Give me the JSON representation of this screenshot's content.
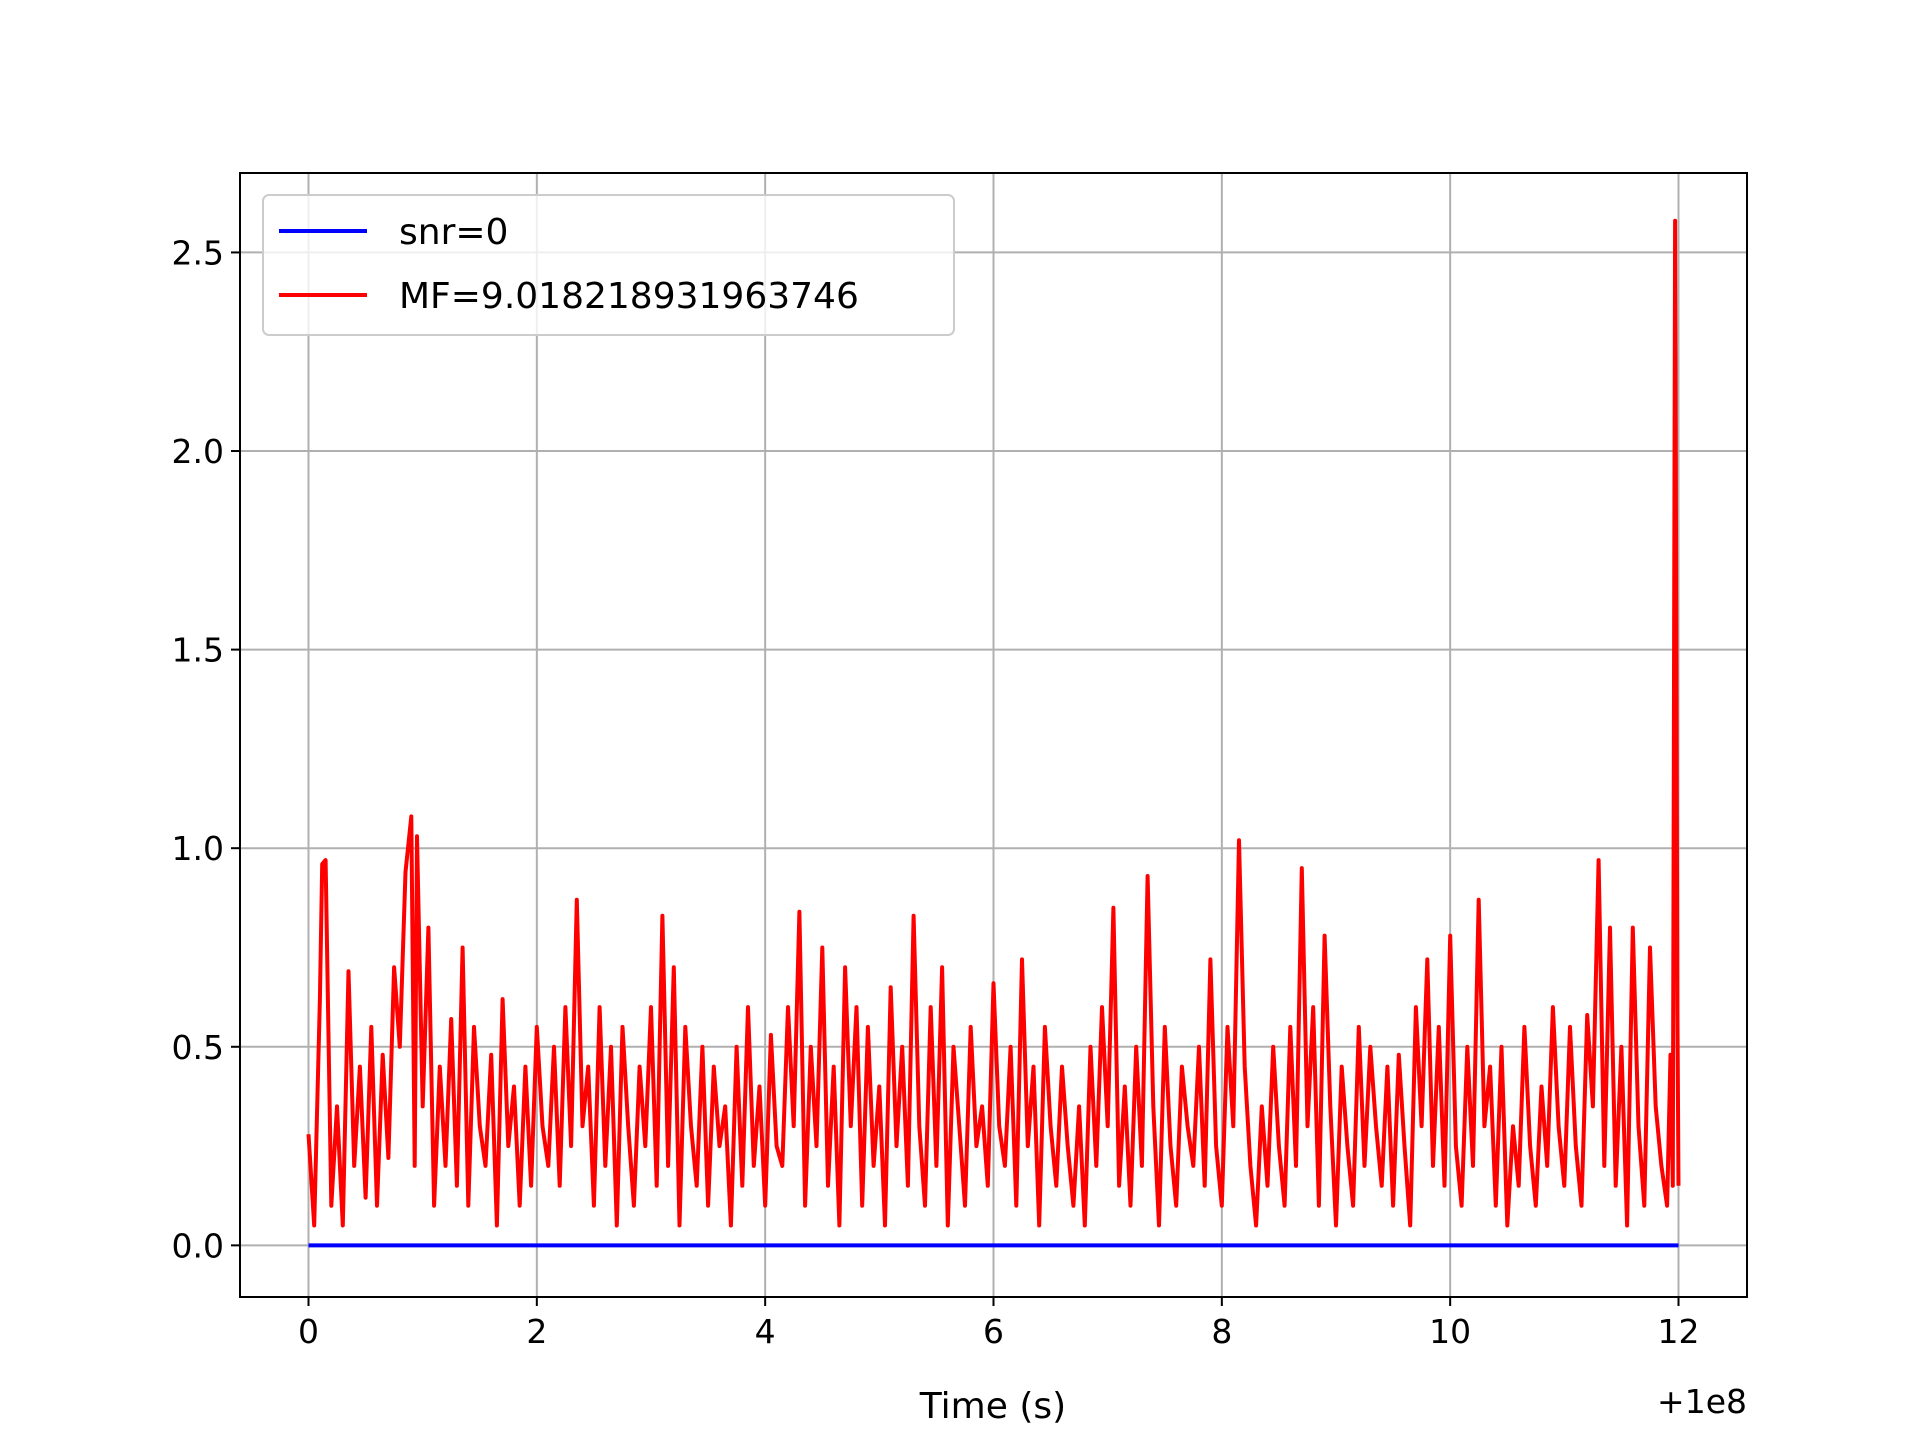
{
  "chart_data": {
    "type": "line",
    "title": "",
    "xlabel": "Time (s)",
    "ylabel": "",
    "x_offset_label": "+1e8",
    "xlim": [
      -0.6,
      12.6
    ],
    "ylim": [
      -0.13,
      2.7
    ],
    "x_ticks": [
      0,
      2,
      4,
      6,
      8,
      10,
      12
    ],
    "x_tick_labels": [
      "0",
      "2",
      "4",
      "6",
      "8",
      "10",
      "12"
    ],
    "y_ticks": [
      0.0,
      0.5,
      1.0,
      1.5,
      2.0,
      2.5
    ],
    "y_tick_labels": [
      "0.0",
      "0.5",
      "1.0",
      "1.5",
      "2.0",
      "2.5"
    ],
    "grid": true,
    "legend_position": "top-left",
    "series": [
      {
        "name": "snr=0",
        "color": "#0000ff",
        "x": [
          0,
          12
        ],
        "y": [
          0.0,
          0.0
        ]
      },
      {
        "name": "MF=9.018218931963746",
        "color": "#ff0000",
        "x": [
          0.0,
          0.05,
          0.1,
          0.12,
          0.15,
          0.2,
          0.25,
          0.3,
          0.35,
          0.4,
          0.45,
          0.5,
          0.55,
          0.6,
          0.65,
          0.7,
          0.75,
          0.8,
          0.85,
          0.9,
          0.93,
          0.95,
          1.0,
          1.05,
          1.1,
          1.15,
          1.2,
          1.25,
          1.3,
          1.35,
          1.4,
          1.45,
          1.5,
          1.55,
          1.6,
          1.65,
          1.7,
          1.75,
          1.8,
          1.85,
          1.9,
          1.95,
          2.0,
          2.05,
          2.1,
          2.15,
          2.2,
          2.25,
          2.3,
          2.35,
          2.4,
          2.45,
          2.5,
          2.55,
          2.6,
          2.65,
          2.7,
          2.75,
          2.8,
          2.85,
          2.9,
          2.95,
          3.0,
          3.05,
          3.1,
          3.15,
          3.2,
          3.25,
          3.3,
          3.35,
          3.4,
          3.45,
          3.5,
          3.55,
          3.6,
          3.65,
          3.7,
          3.75,
          3.8,
          3.85,
          3.9,
          3.95,
          4.0,
          4.05,
          4.1,
          4.15,
          4.2,
          4.25,
          4.3,
          4.35,
          4.4,
          4.45,
          4.5,
          4.55,
          4.6,
          4.65,
          4.7,
          4.75,
          4.8,
          4.85,
          4.9,
          4.95,
          5.0,
          5.05,
          5.1,
          5.15,
          5.2,
          5.25,
          5.3,
          5.35,
          5.4,
          5.45,
          5.5,
          5.55,
          5.6,
          5.65,
          5.7,
          5.75,
          5.8,
          5.85,
          5.9,
          5.95,
          6.0,
          6.05,
          6.1,
          6.15,
          6.2,
          6.25,
          6.3,
          6.35,
          6.4,
          6.45,
          6.5,
          6.55,
          6.6,
          6.65,
          6.7,
          6.75,
          6.8,
          6.85,
          6.9,
          6.95,
          7.0,
          7.05,
          7.1,
          7.15,
          7.2,
          7.25,
          7.3,
          7.35,
          7.4,
          7.45,
          7.5,
          7.55,
          7.6,
          7.65,
          7.7,
          7.75,
          7.8,
          7.85,
          7.9,
          7.95,
          8.0,
          8.05,
          8.1,
          8.15,
          8.2,
          8.25,
          8.3,
          8.35,
          8.4,
          8.45,
          8.5,
          8.55,
          8.6,
          8.65,
          8.7,
          8.75,
          8.8,
          8.85,
          8.9,
          8.95,
          9.0,
          9.05,
          9.1,
          9.15,
          9.2,
          9.25,
          9.3,
          9.35,
          9.4,
          9.45,
          9.5,
          9.55,
          9.6,
          9.65,
          9.7,
          9.75,
          9.8,
          9.85,
          9.9,
          9.95,
          10.0,
          10.05,
          10.1,
          10.15,
          10.2,
          10.25,
          10.3,
          10.35,
          10.4,
          10.45,
          10.5,
          10.55,
          10.6,
          10.65,
          10.7,
          10.75,
          10.8,
          10.85,
          10.9,
          10.95,
          11.0,
          11.05,
          11.1,
          11.15,
          11.2,
          11.25,
          11.3,
          11.35,
          11.4,
          11.45,
          11.5,
          11.55,
          11.6,
          11.65,
          11.7,
          11.75,
          11.8,
          11.85,
          11.9,
          11.93,
          11.95,
          11.97,
          11.99,
          12.0
        ],
        "y": [
          0.28,
          0.05,
          0.62,
          0.96,
          0.97,
          0.1,
          0.35,
          0.05,
          0.69,
          0.2,
          0.45,
          0.12,
          0.55,
          0.1,
          0.48,
          0.22,
          0.7,
          0.5,
          0.94,
          1.08,
          0.2,
          1.03,
          0.35,
          0.8,
          0.1,
          0.45,
          0.2,
          0.57,
          0.15,
          0.75,
          0.1,
          0.55,
          0.3,
          0.2,
          0.48,
          0.05,
          0.62,
          0.25,
          0.4,
          0.1,
          0.45,
          0.15,
          0.55,
          0.3,
          0.2,
          0.5,
          0.15,
          0.6,
          0.25,
          0.87,
          0.3,
          0.45,
          0.1,
          0.6,
          0.2,
          0.5,
          0.05,
          0.55,
          0.3,
          0.1,
          0.45,
          0.25,
          0.6,
          0.15,
          0.83,
          0.2,
          0.7,
          0.05,
          0.55,
          0.3,
          0.15,
          0.5,
          0.1,
          0.45,
          0.25,
          0.35,
          0.05,
          0.5,
          0.15,
          0.6,
          0.2,
          0.4,
          0.1,
          0.53,
          0.25,
          0.2,
          0.6,
          0.3,
          0.84,
          0.1,
          0.5,
          0.25,
          0.75,
          0.15,
          0.45,
          0.05,
          0.7,
          0.3,
          0.6,
          0.1,
          0.55,
          0.2,
          0.4,
          0.05,
          0.65,
          0.25,
          0.5,
          0.15,
          0.83,
          0.3,
          0.1,
          0.6,
          0.2,
          0.7,
          0.05,
          0.5,
          0.3,
          0.1,
          0.55,
          0.25,
          0.35,
          0.15,
          0.66,
          0.3,
          0.2,
          0.5,
          0.1,
          0.72,
          0.25,
          0.45,
          0.05,
          0.55,
          0.3,
          0.15,
          0.45,
          0.25,
          0.1,
          0.35,
          0.05,
          0.5,
          0.2,
          0.6,
          0.3,
          0.85,
          0.15,
          0.4,
          0.1,
          0.5,
          0.2,
          0.93,
          0.35,
          0.05,
          0.55,
          0.25,
          0.1,
          0.45,
          0.3,
          0.2,
          0.5,
          0.15,
          0.72,
          0.25,
          0.1,
          0.55,
          0.3,
          1.02,
          0.45,
          0.2,
          0.05,
          0.35,
          0.15,
          0.5,
          0.25,
          0.1,
          0.55,
          0.2,
          0.95,
          0.3,
          0.6,
          0.1,
          0.78,
          0.35,
          0.05,
          0.45,
          0.25,
          0.1,
          0.55,
          0.2,
          0.5,
          0.3,
          0.15,
          0.45,
          0.1,
          0.48,
          0.25,
          0.05,
          0.6,
          0.3,
          0.72,
          0.2,
          0.55,
          0.15,
          0.78,
          0.25,
          0.1,
          0.5,
          0.2,
          0.87,
          0.3,
          0.45,
          0.1,
          0.5,
          0.05,
          0.3,
          0.15,
          0.55,
          0.25,
          0.1,
          0.4,
          0.2,
          0.6,
          0.3,
          0.15,
          0.55,
          0.25,
          0.1,
          0.58,
          0.35,
          0.97,
          0.2,
          0.8,
          0.15,
          0.5,
          0.05,
          0.8,
          0.3,
          0.1,
          0.75,
          0.35,
          0.2,
          0.1,
          0.48,
          0.15,
          2.58,
          0.6,
          0.15
        ]
      }
    ]
  }
}
